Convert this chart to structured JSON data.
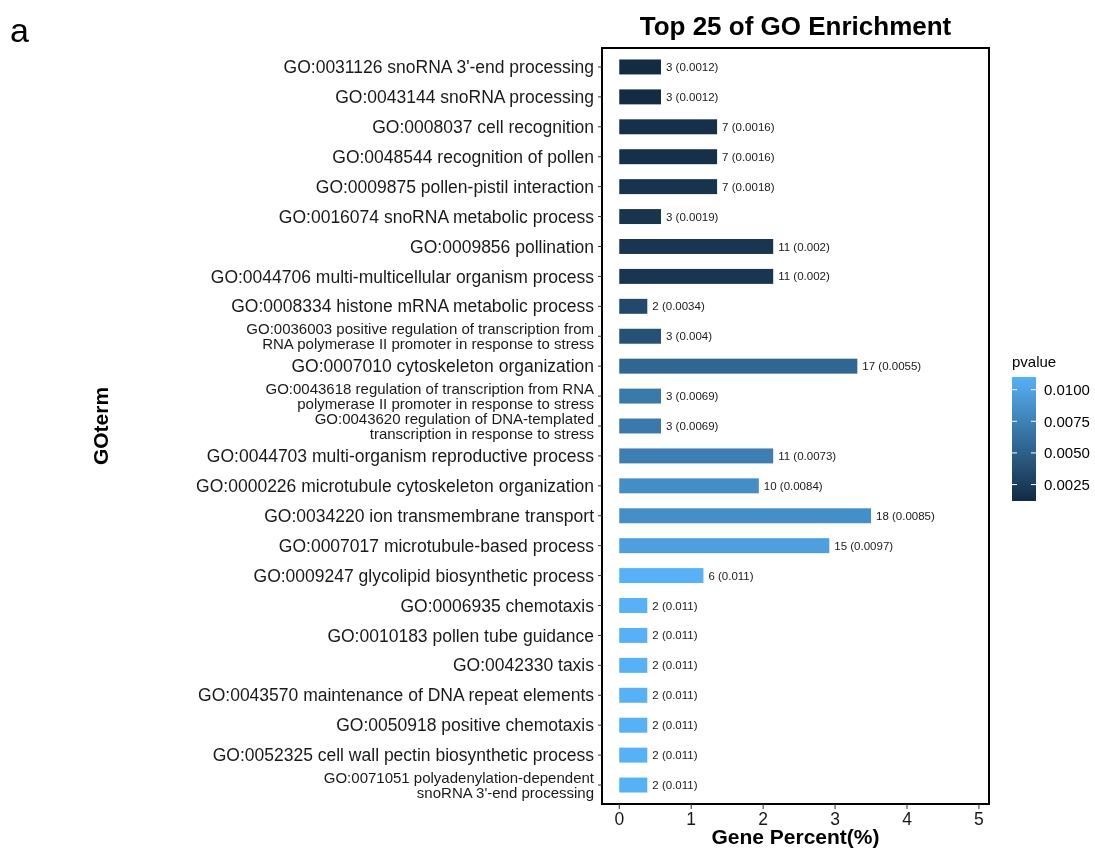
{
  "chart_data": {
    "type": "bar",
    "orientation": "horizontal",
    "title": "Top 25 of GO Enrichment",
    "xlabel": "Gene Percent(%)",
    "ylabel": "GOterm",
    "clabel": "pvalue",
    "categories": [
      "GO:0031126 snoRNA 3'-end processing",
      "GO:0043144 snoRNA processing",
      "GO:0008037 cell recognition",
      "GO:0048544 recognition of pollen",
      "GO:0009875 pollen-pistil interaction",
      "GO:0016074 snoRNA metabolic process",
      "GO:0009856 pollination",
      "GO:0044706 multi-multicellular organism process",
      "GO:0008334 histone mRNA metabolic process",
      "GO:0036003 positive regulation of transcription from\nRNA polymerase II promoter in response to stress",
      "GO:0007010 cytoskeleton organization",
      "GO:0043618 regulation of transcription from RNA\npolymerase II promoter in response to stress",
      "GO:0043620 regulation of DNA-templated\ntranscription in response to stress",
      "GO:0044703 multi-organism reproductive process",
      "GO:0000226 microtubule cytoskeleton organization",
      "GO:0034220 ion transmembrane transport",
      "GO:0007017 microtubule-based process",
      "GO:0009247 glycolipid biosynthetic process",
      "GO:0006935 chemotaxis",
      "GO:0010183 pollen tube guidance",
      "GO:0042330 taxis",
      "GO:0043570 maintenance of DNA repeat elements",
      "GO:0050918 positive chemotaxis",
      "GO:0052325 cell wall pectin biosynthetic process",
      "GO:0071051 polyadenylation-dependent\nsnoRNA 3'-end processing"
    ],
    "values": [
      0.58,
      0.58,
      1.36,
      1.36,
      1.36,
      0.58,
      2.14,
      2.14,
      0.39,
      0.58,
      3.31,
      0.58,
      0.58,
      2.14,
      1.94,
      3.5,
      2.92,
      1.17,
      0.39,
      0.39,
      0.39,
      0.39,
      0.39,
      0.39,
      0.39
    ],
    "cvalues": [
      0.0012,
      0.0012,
      0.0016,
      0.0016,
      0.0018,
      0.0019,
      0.002,
      0.002,
      0.0034,
      0.004,
      0.0055,
      0.0069,
      0.0069,
      0.0073,
      0.0084,
      0.0085,
      0.0097,
      0.011,
      0.011,
      0.011,
      0.011,
      0.011,
      0.011,
      0.011,
      0.011
    ],
    "colors": [
      "#132b43",
      "#132b43",
      "#16304a",
      "#16304a",
      "#17334e",
      "#183550",
      "#183652",
      "#183652",
      "#22496b",
      "#265176",
      "#306692",
      "#3a79ac",
      "#3a79ac",
      "#3d7eb3",
      "#448ec7",
      "#458fc9",
      "#4d9fdf",
      "#56b1f7",
      "#56b1f7",
      "#56b1f7",
      "#56b1f7",
      "#56b1f7",
      "#56b1f7",
      "#56b1f7",
      "#56b1f7"
    ],
    "annotations": [
      "a",
      {
        "text": "3 (0.0012)",
        "x": 0.58,
        "y": "GO:0031126 snoRNA 3'-end processing"
      },
      {
        "text": "3 (0.0012)",
        "x": 0.58,
        "y": "GO:0043144 snoRNA processing"
      },
      {
        "text": "7 (0.0016)",
        "x": 1.36,
        "y": "GO:0008037 cell recognition"
      },
      {
        "text": "7 (0.0016)",
        "x": 1.36,
        "y": "GO:0048544 recognition of pollen"
      },
      {
        "text": "7 (0.0018)",
        "x": 1.36,
        "y": "GO:0009875 pollen-pistil interaction"
      },
      {
        "text": "3 (0.0019)",
        "x": 0.58,
        "y": "GO:0016074 snoRNA metabolic process"
      },
      {
        "text": "11 (0.002)",
        "x": 2.14,
        "y": "GO:0009856 pollination"
      },
      {
        "text": "11 (0.002)",
        "x": 2.14,
        "y": "GO:0044706 multi-multicellular organism process"
      },
      {
        "text": "2 (0.0034)",
        "x": 0.39,
        "y": "GO:0008334 histone mRNA metabolic process"
      },
      {
        "text": "3 (0.004)",
        "x": 0.58,
        "y": "GO:0036003 positive regulation of transcription from\nRNA polymerase II promoter in response to stress"
      },
      {
        "text": "17 (0.0055)",
        "x": 3.31,
        "y": "GO:0007010 cytoskeleton organization"
      },
      {
        "text": "3 (0.0069)",
        "x": 0.58,
        "y": "GO:0043618 regulation of transcription from RNA\npolymerase II promoter in response to stress"
      },
      {
        "text": "3 (0.0069)",
        "x": 0.58,
        "y": "GO:0043620 regulation of DNA-templated\ntranscription in response to stress"
      },
      {
        "text": "11 (0.0073)",
        "x": 2.14,
        "y": "GO:0044703 multi-organism reproductive process"
      },
      {
        "text": "10 (0.0084)",
        "x": 1.94,
        "y": "GO:0000226 microtubule cytoskeleton organization"
      },
      {
        "text": "18 (0.0085)",
        "x": 3.5,
        "y": "GO:0034220 ion transmembrane transport"
      },
      {
        "text": "15 (0.0097)",
        "x": 2.92,
        "y": "GO:0007017 microtubule-based process"
      },
      {
        "text": "6 (0.011)",
        "x": 1.17,
        "y": "GO:0009247 glycolipid biosynthetic process"
      },
      {
        "text": "2 (0.011)",
        "x": 0.39,
        "y": "GO:0006935 chemotaxis"
      },
      {
        "text": "2 (0.011)",
        "x": 0.39,
        "y": "GO:0010183 pollen tube guidance"
      },
      {
        "text": "2 (0.011)",
        "x": 0.39,
        "y": "GO:0042330 taxis"
      },
      {
        "text": "2 (0.011)",
        "x": 0.39,
        "y": "GO:0043570 maintenance of DNA repeat elements"
      },
      {
        "text": "2 (0.011)",
        "x": 0.39,
        "y": "GO:0050918 positive chemotaxis"
      },
      {
        "text": "2 (0.011)",
        "x": 0.39,
        "y": "GO:0052325 cell wall pectin biosynthetic process"
      },
      {
        "text": "2 (0.011)",
        "x": 0.39,
        "y": "GO:0071051 polyadenylation-dependent\nsnoRNA 3'-end processing"
      }
    ],
    "xlim": [
      -0.24,
      5.14
    ],
    "xticks": [
      0,
      1,
      2,
      3,
      4,
      5
    ],
    "clim": [
      0.0012,
      0.011
    ],
    "cticks": [
      {
        "value": 0.0025,
        "label": "0.0025"
      },
      {
        "value": 0.005,
        "label": "0.0050"
      },
      {
        "value": 0.0075,
        "label": "0.0075"
      },
      {
        "value": 0.01,
        "label": "0.0100"
      }
    ],
    "grid": false
  }
}
